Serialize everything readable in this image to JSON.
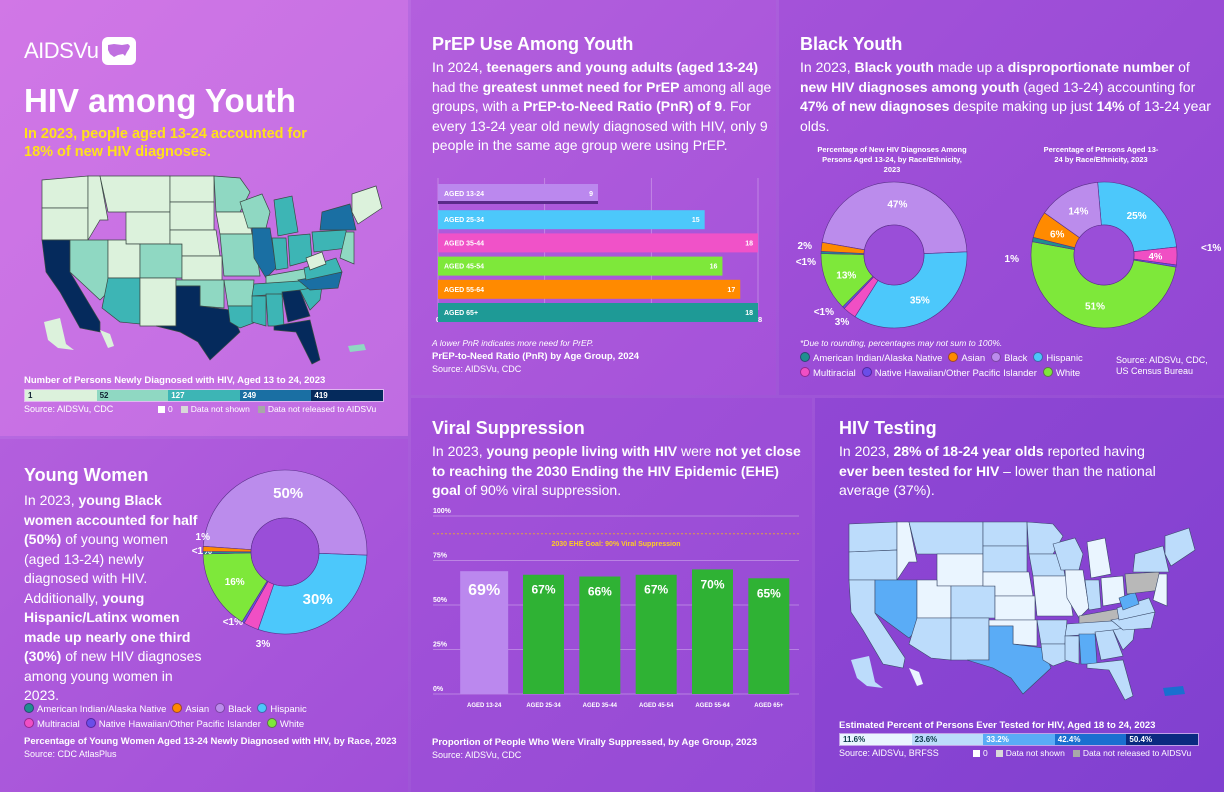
{
  "header": {
    "logo_text": "AIDSVu",
    "title": "HIV among Youth",
    "subtitle": "In 2023, people aged 13-24 accounted for 18% of new HIV diagnoses."
  },
  "map_diagnoses": {
    "caption": "Number of Persons Newly Diagnosed with HIV, Aged 13 to 24, 2023",
    "bins": [
      {
        "label": "1",
        "color": "#dcf2dc",
        "text_color": "#123"
      },
      {
        "label": "52",
        "color": "#8fd8c2",
        "text_color": "#123"
      },
      {
        "label": "127",
        "color": "#3db5b5",
        "text_color": "#fff"
      },
      {
        "label": "249",
        "color": "#1a6fa3",
        "text_color": "#fff"
      },
      {
        "label": "419",
        "color": "#052a5c",
        "text_color": "#fff"
      }
    ],
    "source": "Source: AIDSVu, CDC",
    "nodata": [
      "0",
      "Data not shown",
      "Data not released to AIDSVu"
    ]
  },
  "prep": {
    "heading": "PrEP Use Among Youth",
    "body_html": "In 2024, <b>teenagers and young adults (aged 13-24)</b> had the <b>greatest unmet need for PrEP</b> among all age groups, with a <b>PrEP-to-Need Ratio (PnR) of 9</b>. For every 13-24 year old newly diagnosed with HIV, only 9 people in the same age group were using PrEP.",
    "note": "A lower PnR indicates more need for PrEP.",
    "caption": "PrEP-to-Need Ratio (PnR) by Age Group, 2024",
    "source": "Source: AIDSVu, CDC"
  },
  "black_youth": {
    "heading": "Black Youth",
    "body_html": "In 2023, <b>Black youth</b> made up a <b>disproportionate number</b> of <b>new HIV diagnoses among youth</b> (aged 13-24) accounting for <b>47% of new diagnoses</b> despite making up just <b>14%</b> of 13-24 year olds.",
    "note": "*Due to rounding, percentages may not sum to 100%.",
    "source_line1": "Source: AIDSVu, CDC,",
    "source_line2": "US Census Bureau"
  },
  "race_legend": [
    {
      "label": "American Indian/Alaska Native",
      "color": "#1f8f8f"
    },
    {
      "label": "Asian",
      "color": "#ff8a00"
    },
    {
      "label": "Black",
      "color": "#bb8cec"
    },
    {
      "label": "Hispanic",
      "color": "#4cc8fb"
    },
    {
      "label": "Multiracial",
      "color": "#f04fc4"
    },
    {
      "label": "Native Hawaiian/Other Pacific Islander",
      "color": "#6a4ee8"
    },
    {
      "label": "White",
      "color": "#7ee83a"
    }
  ],
  "young_women": {
    "heading": "Young Women",
    "body_html": "In 2023, <b>young Black women accounted for half (50%)</b> of young women (aged 13-24) newly diagnosed with HIV. Additionally, <b>young Hispanic/Latinx women made up nearly one third (30%)</b> of new HIV diagnoses among young women in 2023.",
    "caption": "Percentage of Young Women Aged 13-24 Newly Diagnosed with HIV, by Race, 2023",
    "source": "Source: CDC AtlasPlus"
  },
  "viral": {
    "heading": "Viral Suppression",
    "body_html": "In 2023, <b>young people living with HIV</b> were <b>not yet close to reaching the 2030 Ending the HIV Epidemic (EHE) goal</b> of 90% viral suppression.",
    "goal_label": "2030 EHE Goal: 90% Viral Suppression",
    "caption": "Proportion of People Who Were Virally Suppressed, by Age Group, 2023",
    "source": "Source: AIDSVu, CDC"
  },
  "testing": {
    "heading": "HIV Testing",
    "body_html": "In 2023, <b>28% of 18-24 year olds</b> reported having <b>ever been tested for HIV</b> – lower than the national average (37%).",
    "caption": "Estimated Percent of Persons Ever Tested for HIV, Aged 18 to 24, 2023",
    "bins": [
      {
        "label": "11.6%",
        "color": "#eaf5ff",
        "text_color": "#0b3a4a"
      },
      {
        "label": "23.6%",
        "color": "#bcdcfb",
        "text_color": "#0b3a4a"
      },
      {
        "label": "33.2%",
        "color": "#5aacf6",
        "text_color": "#fff"
      },
      {
        "label": "42.4%",
        "color": "#1a6fd0",
        "text_color": "#fff"
      },
      {
        "label": "50.4%",
        "color": "#0a2a80",
        "text_color": "#fff"
      }
    ],
    "source": "Source: AIDSVu, BRFSS",
    "nodata": [
      "0",
      "Data not shown",
      "Data not released to AIDSVu"
    ]
  },
  "chart_data": [
    {
      "id": "prep_pnr",
      "type": "bar",
      "orientation": "horizontal",
      "title": "PrEP-to-Need Ratio (PnR) by Age Group, 2024",
      "categories": [
        "AGED 13-24",
        "AGED 25-34",
        "AGED 35-44",
        "AGED 45-54",
        "AGED 55-64",
        "AGED 65+"
      ],
      "values": [
        9,
        15,
        18,
        16,
        17,
        18
      ],
      "colors": [
        "#bb88ee",
        "#4cc8fb",
        "#f052c8",
        "#7ee83a",
        "#ff8a00",
        "#1e9a96"
      ],
      "xticks": [
        0,
        6,
        12,
        18
      ],
      "xlim": [
        0,
        18
      ],
      "grid": true
    },
    {
      "id": "black_youth_diagnoses",
      "type": "pie",
      "donut": true,
      "title": "Percentage of New HIV Diagnoses Among Persons Aged 13-24, by Race/Ethnicity, 2023",
      "slices": [
        {
          "label": "Black",
          "value": 47,
          "text": "47%"
        },
        {
          "label": "Hispanic",
          "value": 35,
          "text": "35%"
        },
        {
          "label": "Multiracial",
          "value": 3,
          "text": "3%"
        },
        {
          "label": "Native Hawaiian/Other Pacific Islander",
          "value": 0.5,
          "text": "<1%"
        },
        {
          "label": "White",
          "value": 13,
          "text": "13%"
        },
        {
          "label": "American Indian/Alaska Native",
          "value": 0.5,
          "text": "<1%"
        },
        {
          "label": "Asian",
          "value": 2,
          "text": "2%"
        }
      ]
    },
    {
      "id": "black_youth_population",
      "type": "pie",
      "donut": true,
      "title": "Percentage of Persons Aged 13-24 by Race/Ethnicity, 2023",
      "slices": [
        {
          "label": "Hispanic",
          "value": 25,
          "text": "25%"
        },
        {
          "label": "Multiracial",
          "value": 4,
          "text": "4%"
        },
        {
          "label": "Native Hawaiian/Other Pacific Islander",
          "value": 0.5,
          "text": "<1%"
        },
        {
          "label": "White",
          "value": 51,
          "text": "51%"
        },
        {
          "label": "American Indian/Alaska Native",
          "value": 1,
          "text": "1%"
        },
        {
          "label": "Asian",
          "value": 6,
          "text": "6%"
        },
        {
          "label": "Black",
          "value": 14,
          "text": "14%"
        }
      ]
    },
    {
      "id": "young_women",
      "type": "pie",
      "donut": true,
      "title": "Percentage of Young Women Aged 13-24 Newly Diagnosed with HIV, by Race, 2023",
      "slices": [
        {
          "label": "Black",
          "value": 50,
          "text": "50%"
        },
        {
          "label": "Hispanic",
          "value": 30,
          "text": "30%"
        },
        {
          "label": "Multiracial",
          "value": 3,
          "text": "3%"
        },
        {
          "label": "Native Hawaiian/Other Pacific Islander",
          "value": 0.5,
          "text": "<1%"
        },
        {
          "label": "White",
          "value": 16,
          "text": "16%"
        },
        {
          "label": "American Indian/Alaska Native",
          "value": 0.5,
          "text": "<1%"
        },
        {
          "label": "Asian",
          "value": 1,
          "text": "1%"
        }
      ]
    },
    {
      "id": "viral_suppression",
      "type": "bar",
      "orientation": "vertical",
      "title": "Proportion of People Who Were Virally Suppressed, by Age Group, 2023",
      "categories": [
        "AGED 13-24",
        "AGED 25-34",
        "AGED 35-44",
        "AGED 45-54",
        "AGED 55-64",
        "AGED 65+"
      ],
      "values": [
        69,
        67,
        66,
        67,
        70,
        65
      ],
      "labels": [
        "69%",
        "67%",
        "66%",
        "67%",
        "70%",
        "65%"
      ],
      "colors": [
        "#bb88ee",
        "#2fb234",
        "#2fb234",
        "#2fb234",
        "#2fb234",
        "#2fb234"
      ],
      "yticks": [
        "0%",
        "25%",
        "50%",
        "75%",
        "100%"
      ],
      "ylim": [
        0,
        100
      ],
      "reference_line": {
        "value": 90,
        "label": "2030 EHE Goal: 90% Viral Suppression"
      },
      "grid": true
    }
  ]
}
